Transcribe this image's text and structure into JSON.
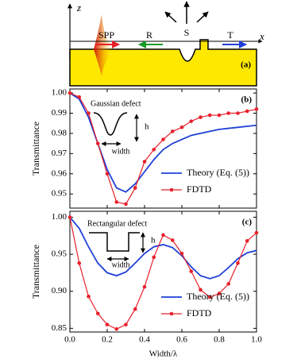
{
  "schematic": {
    "labels": [
      "z",
      "x",
      "SPP",
      "R",
      "S",
      "T",
      "(a)"
    ]
  },
  "chart_data": [
    {
      "type": "line",
      "panel_label": "(b)",
      "y_label": "Transmittance",
      "annotations": [
        "Gaussian defect",
        "h",
        "width"
      ],
      "legend": "lower right",
      "xlim": [
        0,
        1
      ],
      "xticks": [
        0,
        0.2,
        0.4,
        0.6,
        0.8,
        1
      ],
      "ylim": [
        0.943,
        1.002
      ],
      "yticks": [
        0.95,
        0.96,
        0.97,
        0.98,
        0.99,
        {
          "value": 1,
          "label": "1.00"
        }
      ],
      "series": [
        {
          "name": "Theory (Eq. (5))",
          "color": "#1f3fd8",
          "marker": false,
          "x": [
            0,
            0.05,
            0.1,
            0.15,
            0.2,
            0.25,
            0.3,
            0.35,
            0.4,
            0.45,
            0.5,
            0.55,
            0.6,
            0.65,
            0.7,
            0.75,
            0.8,
            0.85,
            0.9,
            0.95,
            1
          ],
          "values": [
            1.0,
            0.997,
            0.988,
            0.975,
            0.962,
            0.953,
            0.951,
            0.955,
            0.961,
            0.967,
            0.972,
            0.975,
            0.977,
            0.979,
            0.98,
            0.981,
            0.982,
            0.9825,
            0.983,
            0.9835,
            0.984
          ]
        },
        {
          "name": "FDTD",
          "color": "#e8202a",
          "marker": true,
          "x": [
            0,
            0.05,
            0.1,
            0.15,
            0.2,
            0.25,
            0.3,
            0.35,
            0.4,
            0.45,
            0.5,
            0.55,
            0.6,
            0.65,
            0.7,
            0.75,
            0.8,
            0.85,
            0.9,
            0.95,
            1
          ],
          "values": [
            1.0,
            0.998,
            0.99,
            0.975,
            0.96,
            0.946,
            0.945,
            0.953,
            0.966,
            0.972,
            0.977,
            0.981,
            0.983,
            0.986,
            0.988,
            0.989,
            0.989,
            0.99,
            0.99,
            0.991,
            0.992
          ]
        }
      ]
    },
    {
      "type": "line",
      "panel_label": "(c)",
      "y_label": "Transmittance",
      "x_label": "Width/λ",
      "annotations": [
        "Rectangular defect",
        "h",
        "width"
      ],
      "legend": "lower right",
      "xlim": [
        0,
        1
      ],
      "xticks": [
        {
          "value": 0,
          "label": "0.0"
        },
        0.2,
        0.4,
        0.6,
        0.8,
        {
          "value": 1,
          "label": "1.0"
        }
      ],
      "ylim": [
        0.845,
        1.008
      ],
      "yticks": [
        0.85,
        {
          "value": 0.9,
          "label": "0.90"
        },
        0.95,
        {
          "value": 1,
          "label": "1.00"
        }
      ],
      "series": [
        {
          "name": "Theory (Eq. (5))",
          "color": "#1f3fd8",
          "marker": false,
          "x": [
            0,
            0.05,
            0.1,
            0.15,
            0.2,
            0.25,
            0.3,
            0.35,
            0.4,
            0.45,
            0.5,
            0.55,
            0.6,
            0.65,
            0.7,
            0.75,
            0.8,
            0.85,
            0.9,
            0.95,
            1
          ],
          "values": [
            1.0,
            0.985,
            0.96,
            0.938,
            0.925,
            0.921,
            0.926,
            0.938,
            0.951,
            0.96,
            0.963,
            0.959,
            0.948,
            0.933,
            0.921,
            0.917,
            0.921,
            0.932,
            0.944,
            0.952,
            0.955
          ]
        },
        {
          "name": "FDTD",
          "color": "#e8202a",
          "marker": true,
          "x": [
            0,
            0.05,
            0.1,
            0.15,
            0.2,
            0.25,
            0.3,
            0.35,
            0.4,
            0.45,
            0.5,
            0.55,
            0.6,
            0.65,
            0.7,
            0.75,
            0.8,
            0.85,
            0.9,
            0.95,
            1
          ],
          "values": [
            1.0,
            0.938,
            0.893,
            0.87,
            0.855,
            0.849,
            0.855,
            0.876,
            0.906,
            0.946,
            0.976,
            0.969,
            0.951,
            0.927,
            0.902,
            0.892,
            0.897,
            0.91,
            0.938,
            0.968,
            0.979
          ]
        }
      ]
    }
  ]
}
